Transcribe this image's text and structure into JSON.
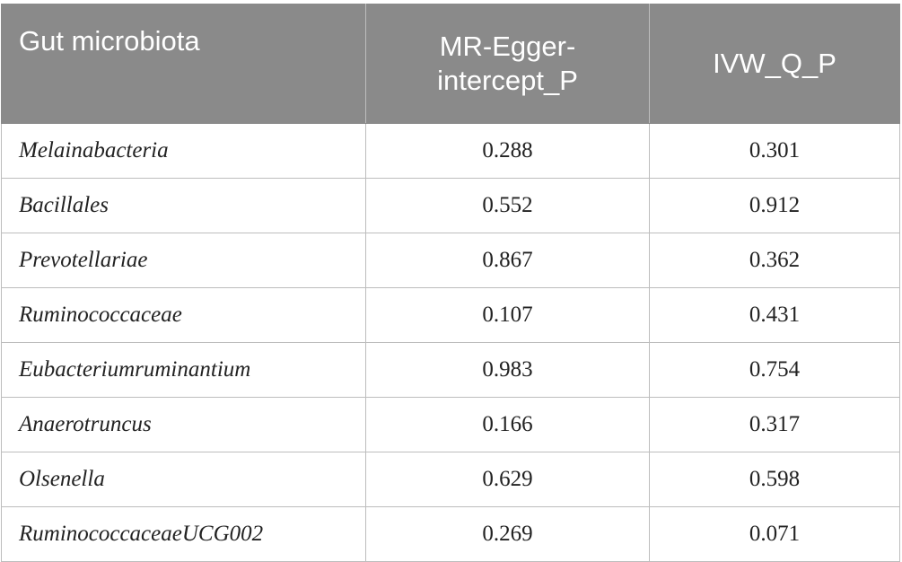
{
  "table": {
    "headers": {
      "microbiota": "Gut microbiota",
      "egger_line1": "MR-Egger-",
      "egger_line2": "intercept_P",
      "ivw": "IVW_Q_P"
    },
    "rows": [
      {
        "name": "Melainabacteria",
        "egger": "0.288",
        "ivw": "0.301"
      },
      {
        "name": "Bacillales",
        "egger": "0.552",
        "ivw": "0.912"
      },
      {
        "name": "Prevotellariae",
        "egger": "0.867",
        "ivw": "0.362"
      },
      {
        "name": "Ruminococcaceae",
        "egger": "0.107",
        "ivw": "0.431"
      },
      {
        "name": "Eubacteriumruminantium",
        "egger": "0.983",
        "ivw": "0.754"
      },
      {
        "name": "Anaerotruncus",
        "egger": "0.166",
        "ivw": "0.317"
      },
      {
        "name": "Olsenella",
        "egger": "0.629",
        "ivw": "0.598"
      },
      {
        "name": "RuminococcaceaeUCG002",
        "egger": "0.269",
        "ivw": "0.071"
      }
    ]
  }
}
